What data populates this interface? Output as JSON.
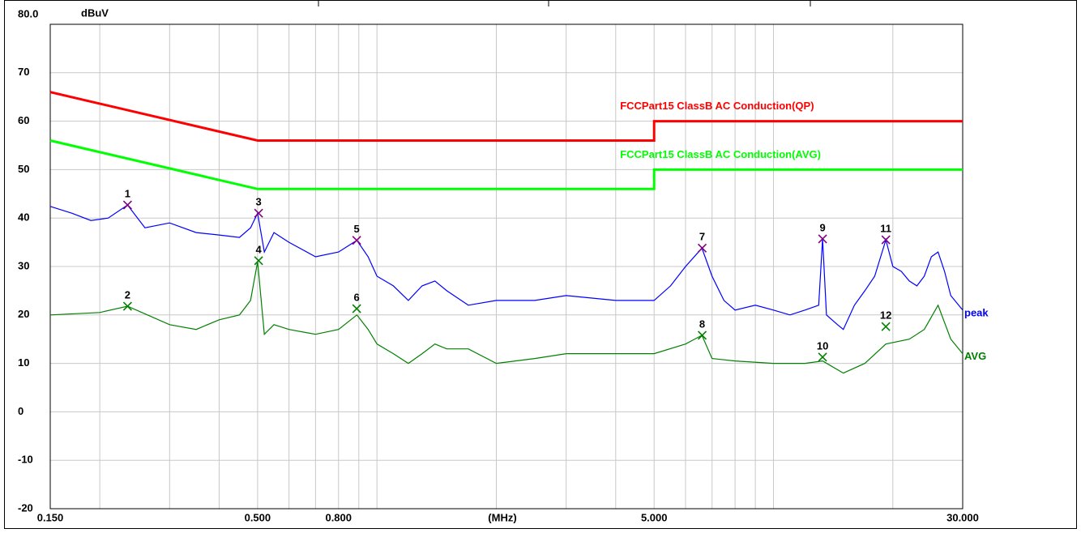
{
  "chart_data": {
    "type": "line",
    "xlog": true,
    "ylabel": "dBuV",
    "xlabel": "(MHz)",
    "xlim": [
      0.15,
      30
    ],
    "ylim": [
      -20,
      80
    ],
    "xticks": [
      {
        "value": 0.15,
        "label": "0.150"
      },
      {
        "value": 0.5,
        "label": "0.500"
      },
      {
        "value": 0.8,
        "label": "0.800"
      },
      {
        "value": 5,
        "label": "5.000"
      },
      {
        "value": 30,
        "label": "30.000"
      }
    ],
    "xgrid_minor": [
      0.2,
      0.3,
      0.4,
      0.6,
      0.7,
      0.9,
      1,
      2,
      3,
      4,
      6,
      7,
      8,
      9,
      10,
      20
    ],
    "yticks": [
      {
        "value": 80,
        "label": "80.0"
      },
      70,
      60,
      50,
      40,
      30,
      20,
      10,
      0,
      -10,
      -20
    ],
    "grid": true,
    "series": [
      {
        "name": "FCCPart15 ClassB AC Conduction(QP)",
        "kind": "limit",
        "color": "#ff0000",
        "x": [
          0.15,
          0.5,
          5,
          5,
          30
        ],
        "values": [
          66,
          56,
          56,
          60,
          60
        ]
      },
      {
        "name": "FCCPart15 ClassB AC Conduction(AVG)",
        "kind": "limit",
        "color": "#00ff00",
        "x": [
          0.15,
          0.5,
          5,
          5,
          30
        ],
        "values": [
          56,
          46,
          46,
          50,
          50
        ]
      },
      {
        "name": "peak",
        "kind": "trace",
        "color": "#0000ff",
        "x": [
          0.15,
          0.17,
          0.19,
          0.21,
          0.235,
          0.26,
          0.3,
          0.35,
          0.4,
          0.45,
          0.48,
          0.5,
          0.52,
          0.55,
          0.6,
          0.7,
          0.8,
          0.89,
          0.95,
          1.0,
          1.1,
          1.2,
          1.3,
          1.4,
          1.5,
          1.7,
          2,
          2.5,
          3,
          4,
          5,
          5.5,
          6,
          6.6,
          7,
          7.5,
          8,
          9,
          10,
          11,
          12,
          13,
          13.3,
          13.6,
          14.5,
          15,
          16,
          17,
          18,
          19.2,
          20,
          21,
          22,
          23,
          24,
          25,
          26,
          27,
          28,
          30
        ],
        "values": [
          42.4,
          41,
          39.5,
          40,
          42.7,
          38,
          39,
          37,
          36.5,
          36,
          38,
          41,
          33,
          37,
          35,
          32,
          33,
          35.4,
          32,
          28,
          26,
          23,
          26,
          27,
          25,
          22,
          23,
          23,
          24,
          23,
          23,
          26,
          30,
          33.8,
          28,
          23,
          21,
          22,
          21,
          20,
          21,
          22,
          35.7,
          20,
          18,
          17,
          22,
          25,
          28,
          35.5,
          30,
          29,
          27,
          26,
          28,
          32,
          33,
          29,
          24,
          21
        ]
      },
      {
        "name": "AVG",
        "kind": "trace",
        "color": "#008000",
        "x": [
          0.15,
          0.2,
          0.235,
          0.3,
          0.35,
          0.4,
          0.45,
          0.48,
          0.5,
          0.52,
          0.55,
          0.6,
          0.7,
          0.8,
          0.89,
          0.95,
          1.0,
          1.1,
          1.2,
          1.3,
          1.4,
          1.5,
          1.7,
          2,
          2.5,
          3,
          4,
          5,
          6,
          6.6,
          7,
          8,
          10,
          12,
          13.3,
          15,
          17,
          19.2,
          22,
          24,
          26,
          28,
          30
        ],
        "values": [
          20,
          20.5,
          21.8,
          18,
          17,
          19,
          20,
          23,
          31,
          16,
          18,
          17,
          16,
          17,
          20,
          17,
          14,
          12,
          10,
          12,
          14,
          13,
          13,
          10,
          11,
          12,
          12,
          12,
          14,
          15.8,
          11,
          10.5,
          10,
          10,
          10.5,
          8,
          10,
          14,
          15,
          17,
          22,
          15,
          12
        ]
      }
    ],
    "markers": [
      {
        "label": "1",
        "x": 0.235,
        "value": 42.7,
        "color": "#800080"
      },
      {
        "label": "2",
        "x": 0.235,
        "value": 21.8,
        "color": "#008000"
      },
      {
        "label": "3",
        "x": 0.503,
        "value": 41.0,
        "color": "#800080"
      },
      {
        "label": "4",
        "x": 0.503,
        "value": 31.2,
        "color": "#008000"
      },
      {
        "label": "5",
        "x": 0.889,
        "value": 35.4,
        "color": "#800080"
      },
      {
        "label": "6",
        "x": 0.889,
        "value": 21.3,
        "color": "#008000"
      },
      {
        "label": "7",
        "x": 6.61,
        "value": 33.8,
        "color": "#800080"
      },
      {
        "label": "8",
        "x": 6.61,
        "value": 15.8,
        "color": "#008000"
      },
      {
        "label": "9",
        "x": 13.3,
        "value": 35.7,
        "color": "#800080"
      },
      {
        "label": "10",
        "x": 13.3,
        "value": 11.3,
        "color": "#008000"
      },
      {
        "label": "11",
        "x": 19.2,
        "value": 35.5,
        "color": "#800080"
      },
      {
        "label": "12",
        "x": 19.2,
        "value": 17.6,
        "color": "#008000"
      }
    ]
  }
}
